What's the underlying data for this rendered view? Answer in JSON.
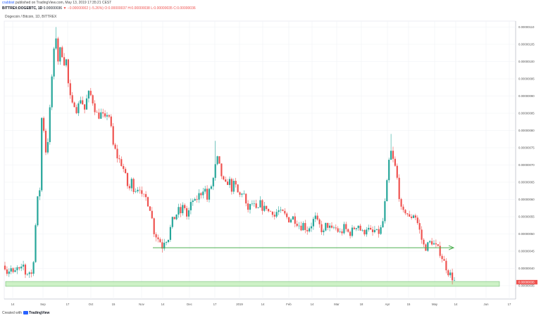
{
  "header": {
    "author": "crabbist",
    "published_text": "published on TradingView.com, May 13, 2019 17:35:21 CEST",
    "symbol": "BITTREX:DOGEBTC, 1D",
    "last_value": "0.00000036",
    "change": "▼ −0.00000002 (−5.26%)",
    "open": "O:0.00000037",
    "high": "H:0.00000038",
    "low": "L:0.00000035",
    "close": "C:0.00000036"
  },
  "chart_label": "Dogecoin / Bitcoin, 1D, BITTREX",
  "footer": {
    "created_with": "Created with",
    "brand": "TradingView"
  },
  "colors": {
    "up": "#26a69a",
    "down": "#ef5350",
    "support_line": "#4caf50",
    "zone_fill": "#c8f0c0",
    "zone_stroke": "#66bb6a",
    "last_price_bg": "#ef5350"
  },
  "chart_data": {
    "type": "candlestick",
    "y_ticks": [
      "0.00000035",
      "0.00000040",
      "0.00000045",
      "0.00000050",
      "0.00000055",
      "0.00000060",
      "0.00000065",
      "0.00000070",
      "0.00000075",
      "0.00000080",
      "0.00000085",
      "0.00000090",
      "0.00000095",
      "0.00000100",
      "0.00000105",
      "0.00000110"
    ],
    "x_ticks": [
      "14",
      "Sep",
      "17",
      "Oct",
      "15",
      "Nov",
      "14",
      "Dec",
      "17",
      "2019",
      "14",
      "Feb",
      "14",
      "Mar",
      "18",
      "Apr",
      "15",
      "May",
      "14",
      "Jun",
      "17"
    ],
    "last_price_label": "0.00000036",
    "support_line_value": 4.6e-07,
    "zone": [
      3.48e-07,
      3.62e-07
    ],
    "path": [
      [
        0,
        0.41
      ],
      [
        5,
        0.42
      ],
      [
        10,
        0.39
      ],
      [
        16,
        0.4
      ],
      [
        19,
        0.38
      ],
      [
        24,
        0.4
      ],
      [
        29,
        0.39
      ],
      [
        33,
        0.41
      ],
      [
        36,
        0.385
      ],
      [
        42,
        0.39
      ],
      [
        46,
        0.38
      ],
      [
        50,
        0.5
      ],
      [
        52,
        0.6
      ],
      [
        56,
        0.6
      ],
      [
        58,
        0.8
      ],
      [
        60,
        0.86
      ],
      [
        63,
        0.78
      ],
      [
        66,
        0.72
      ],
      [
        70,
        0.83
      ],
      [
        73,
        0.94
      ],
      [
        76,
        1.01
      ],
      [
        79,
        1.1
      ],
      [
        81,
        0.99
      ],
      [
        84,
        1.02
      ],
      [
        87,
        1.05
      ],
      [
        90,
        0.98
      ],
      [
        93,
        1.03
      ],
      [
        96,
        0.95
      ],
      [
        99,
        0.9
      ],
      [
        103,
        0.87
      ],
      [
        106,
        0.88
      ],
      [
        110,
        0.85
      ],
      [
        113,
        0.9
      ],
      [
        117,
        0.88
      ],
      [
        120,
        0.86
      ],
      [
        124,
        0.9
      ],
      [
        127,
        0.91
      ],
      [
        131,
        0.89
      ],
      [
        135,
        0.86
      ],
      [
        139,
        0.84
      ],
      [
        144,
        0.85
      ],
      [
        149,
        0.83
      ],
      [
        152,
        0.85
      ],
      [
        156,
        0.84
      ],
      [
        160,
        0.76
      ],
      [
        164,
        0.74
      ],
      [
        167,
        0.72
      ],
      [
        171,
        0.71
      ],
      [
        175,
        0.69
      ],
      [
        179,
        0.66
      ],
      [
        183,
        0.62
      ],
      [
        186,
        0.66
      ],
      [
        190,
        0.63
      ],
      [
        194,
        0.63
      ],
      [
        198,
        0.64
      ],
      [
        202,
        0.6
      ],
      [
        206,
        0.61
      ],
      [
        210,
        0.59
      ],
      [
        214,
        0.57
      ],
      [
        218,
        0.51
      ],
      [
        223,
        0.49
      ],
      [
        227,
        0.48
      ],
      [
        231,
        0.46
      ],
      [
        234,
        0.49
      ],
      [
        238,
        0.48
      ],
      [
        241,
        0.51
      ],
      [
        245,
        0.54
      ],
      [
        249,
        0.55
      ],
      [
        253,
        0.57
      ],
      [
        257,
        0.56
      ],
      [
        261,
        0.59
      ],
      [
        265,
        0.55
      ],
      [
        269,
        0.57
      ],
      [
        273,
        0.6
      ],
      [
        277,
        0.59
      ],
      [
        281,
        0.61
      ],
      [
        286,
        0.62
      ],
      [
        290,
        0.64
      ],
      [
        294,
        0.6
      ],
      [
        298,
        0.63
      ],
      [
        302,
        0.65
      ],
      [
        305,
        0.69
      ],
      [
        309,
        0.72
      ],
      [
        313,
        0.68
      ],
      [
        317,
        0.65
      ],
      [
        321,
        0.64
      ],
      [
        325,
        0.66
      ],
      [
        329,
        0.63
      ],
      [
        333,
        0.65
      ],
      [
        337,
        0.62
      ],
      [
        341,
        0.61
      ],
      [
        345,
        0.63
      ],
      [
        349,
        0.58
      ],
      [
        353,
        0.57
      ],
      [
        357,
        0.59
      ],
      [
        361,
        0.58
      ],
      [
        365,
        0.56
      ],
      [
        369,
        0.59
      ],
      [
        374,
        0.57
      ],
      [
        378,
        0.58
      ],
      [
        382,
        0.56
      ],
      [
        386,
        0.57
      ],
      [
        390,
        0.55
      ],
      [
        394,
        0.57
      ],
      [
        398,
        0.56
      ],
      [
        402,
        0.56
      ],
      [
        406,
        0.55
      ],
      [
        411,
        0.54
      ],
      [
        415,
        0.55
      ],
      [
        419,
        0.54
      ],
      [
        423,
        0.53
      ],
      [
        427,
        0.52
      ],
      [
        431,
        0.53
      ],
      [
        435,
        0.51
      ],
      [
        439,
        0.52
      ],
      [
        443,
        0.53
      ],
      [
        447,
        0.55
      ],
      [
        451,
        0.53
      ],
      [
        455,
        0.52
      ],
      [
        459,
        0.5
      ],
      [
        463,
        0.53
      ],
      [
        467,
        0.52
      ],
      [
        471,
        0.51
      ],
      [
        475,
        0.52
      ],
      [
        479,
        0.51
      ],
      [
        484,
        0.5
      ],
      [
        488,
        0.52
      ],
      [
        492,
        0.51
      ],
      [
        496,
        0.5
      ],
      [
        500,
        0.51
      ],
      [
        504,
        0.52
      ],
      [
        508,
        0.53
      ],
      [
        512,
        0.51
      ],
      [
        516,
        0.5
      ],
      [
        520,
        0.52
      ],
      [
        524,
        0.51
      ],
      [
        528,
        0.5
      ],
      [
        532,
        0.51
      ],
      [
        536,
        0.5
      ],
      [
        540,
        0.51
      ],
      [
        544,
        0.54
      ],
      [
        548,
        0.62
      ],
      [
        551,
        0.68
      ],
      [
        553,
        0.73
      ],
      [
        556,
        0.74
      ],
      [
        559,
        0.7
      ],
      [
        562,
        0.69
      ],
      [
        565,
        0.64
      ],
      [
        568,
        0.59
      ],
      [
        571,
        0.55
      ],
      [
        574,
        0.57
      ],
      [
        578,
        0.56
      ],
      [
        582,
        0.54
      ],
      [
        586,
        0.56
      ],
      [
        590,
        0.55
      ],
      [
        593,
        0.53
      ],
      [
        597,
        0.5
      ],
      [
        600,
        0.47
      ],
      [
        604,
        0.46
      ],
      [
        608,
        0.47
      ],
      [
        612,
        0.48
      ],
      [
        616,
        0.47
      ],
      [
        620,
        0.46
      ],
      [
        624,
        0.45
      ],
      [
        628,
        0.43
      ],
      [
        632,
        0.41
      ],
      [
        636,
        0.39
      ],
      [
        640,
        0.38
      ],
      [
        643,
        0.37
      ],
      [
        646,
        0.36
      ]
    ],
    "spikes": [
      [
        79,
        1.1
      ],
      [
        306,
        0.77
      ],
      [
        554,
        0.79
      ]
    ]
  }
}
